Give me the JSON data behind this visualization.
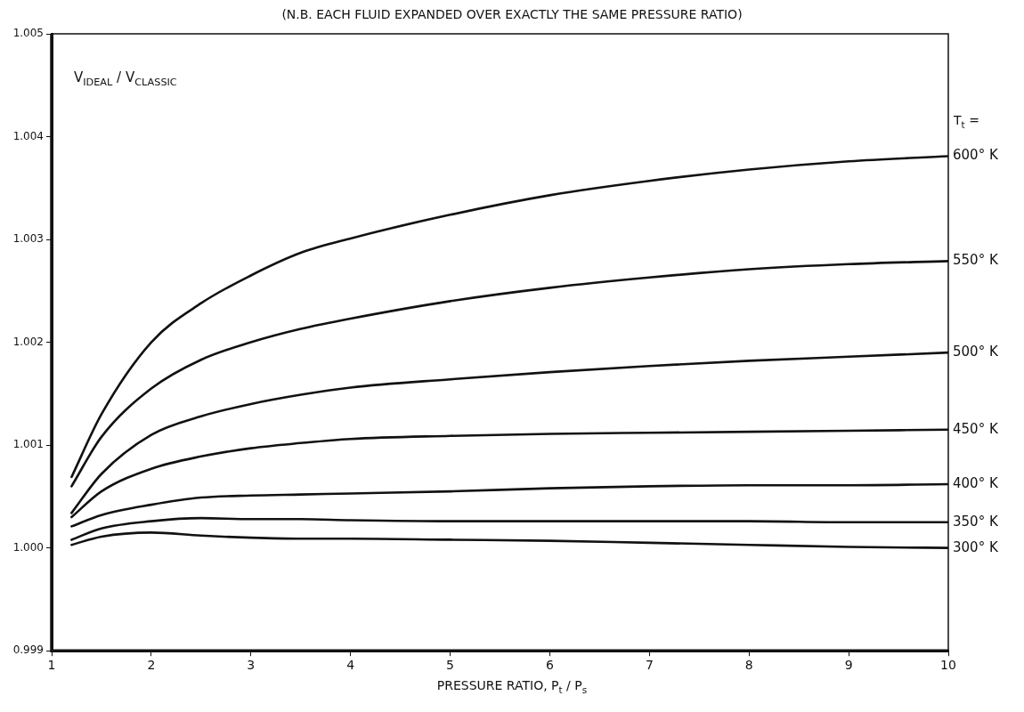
{
  "chart_data": {
    "type": "line",
    "title": "(N.B. EACH FLUID EXPANDED OVER EXACTLY THE SAME PRESSURE RATIO)",
    "xlabel": "PRESSURE  RATIO,  P$_{t}$ / P$_{s}$",
    "ylabel": "V$_{IDEAL}$ / V$_{CLASSIC}$",
    "legend_title": "T$_{t}$ =",
    "x": [
      1.2,
      1.5,
      2,
      2.5,
      3,
      3.5,
      4,
      5,
      6,
      7,
      8,
      9,
      10
    ],
    "series": [
      {
        "name": "600° K",
        "color": "#111111",
        "values": [
          1.00069,
          1.0013,
          1.002,
          1.00238,
          1.00265,
          1.00287,
          1.00301,
          1.00324,
          1.00343,
          1.00357,
          1.00368,
          1.00376,
          1.00381
        ]
      },
      {
        "name": "550° K",
        "color": "#111111",
        "values": [
          1.0006,
          1.00108,
          1.00155,
          1.00183,
          1.002,
          1.00213,
          1.00223,
          1.0024,
          1.00253,
          1.00263,
          1.00271,
          1.00276,
          1.00279
        ]
      },
      {
        "name": "500° K",
        "color": "#111111",
        "values": [
          1.00034,
          1.00072,
          1.0011,
          1.00128,
          1.0014,
          1.00149,
          1.00156,
          1.00164,
          1.00171,
          1.00177,
          1.00182,
          1.00186,
          1.0019
        ]
      },
      {
        "name": "450° K",
        "color": "#111111",
        "values": [
          1.0003,
          1.00055,
          1.00077,
          1.00089,
          1.00097,
          1.00102,
          1.00106,
          1.00109,
          1.00111,
          1.00112,
          1.00113,
          1.00114,
          1.00115
        ]
      },
      {
        "name": "400° K",
        "color": "#111111",
        "values": [
          1.00021,
          1.00032,
          1.00042,
          1.00049,
          1.00051,
          1.00052,
          1.00053,
          1.00055,
          1.00058,
          1.0006,
          1.00061,
          1.00061,
          1.00062
        ]
      },
      {
        "name": "350° K",
        "color": "#111111",
        "values": [
          1.00008,
          1.00019,
          1.00026,
          1.00029,
          1.00028,
          1.00028,
          1.00027,
          1.00026,
          1.00026,
          1.00026,
          1.00026,
          1.00025,
          1.00025
        ]
      },
      {
        "name": "300° K",
        "color": "#111111",
        "values": [
          1.00003,
          1.00011,
          1.00015,
          1.00012,
          1.0001,
          1.00009,
          1.00009,
          1.00008,
          1.00007,
          1.00005,
          1.00003,
          1.00001,
          1.0
        ]
      }
    ],
    "xlim": [
      1,
      10
    ],
    "xticks": [
      1,
      2,
      3,
      4,
      5,
      6,
      7,
      8,
      9,
      10
    ],
    "ylim": [
      0.999,
      1.005
    ],
    "yticks": [
      0.999,
      {
        "value": 1.0,
        "label": "1.000"
      },
      1.001,
      1.002,
      1.003,
      1.004,
      1.005
    ],
    "grid": false,
    "legend": false,
    "marker": "none",
    "line_style": "solid"
  }
}
